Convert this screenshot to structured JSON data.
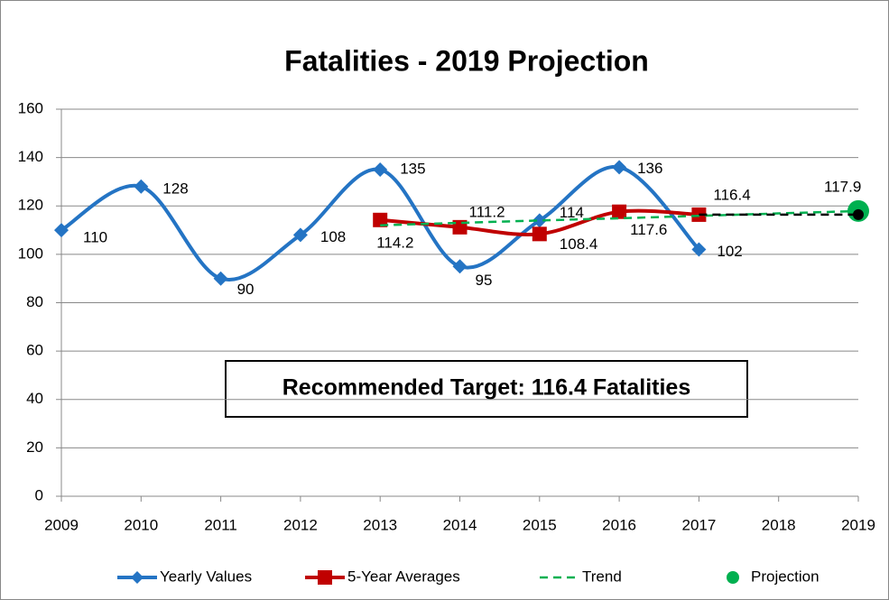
{
  "chart_data": {
    "type": "line",
    "title": "Fatalities - 2019 Projection",
    "annotation": "Recommended Target:  116.4 Fatalities",
    "xlim": [
      2009,
      2019
    ],
    "xticks": [
      2009,
      2010,
      2011,
      2012,
      2013,
      2014,
      2015,
      2016,
      2017,
      2018,
      2019
    ],
    "ylim": [
      0,
      160
    ],
    "yticks": [
      0,
      20,
      40,
      60,
      80,
      100,
      120,
      140,
      160
    ],
    "grid": true,
    "series": [
      {
        "name": "Yearly Values",
        "color": "#2474c4",
        "line": "solid",
        "smooth": true,
        "marker": "diamond",
        "labels": true,
        "x": [
          2009,
          2010,
          2011,
          2012,
          2013,
          2014,
          2015,
          2016,
          2017
        ],
        "values": [
          110,
          128,
          90,
          108,
          135,
          95,
          114,
          136,
          102
        ]
      },
      {
        "name": "5-Year Averages",
        "color": "#c00000",
        "line": "solid",
        "smooth": true,
        "marker": "square",
        "labels": true,
        "x": [
          2013,
          2014,
          2015,
          2016,
          2017
        ],
        "values": [
          114.2,
          111.2,
          108.4,
          117.6,
          116.4
        ]
      },
      {
        "name": "Trend",
        "color": "#00b050",
        "line": "dashed",
        "smooth": false,
        "marker": "none",
        "labels": false,
        "x": [
          2013,
          2014,
          2015,
          2016,
          2017,
          2018,
          2019
        ],
        "values": [
          112.0,
          113.0,
          114.0,
          114.9,
          115.9,
          116.9,
          117.9
        ]
      },
      {
        "name": "Projection",
        "color": "#00b050",
        "line": "none",
        "smooth": false,
        "marker": "circle",
        "labels": true,
        "x": [
          2019
        ],
        "values": [
          117.9
        ]
      },
      {
        "color": "#000000",
        "line": "dashed",
        "smooth": false,
        "marker": "end-dot",
        "labels": false,
        "x": [
          2017,
          2019
        ],
        "values": [
          116.4,
          116.4
        ]
      }
    ]
  }
}
